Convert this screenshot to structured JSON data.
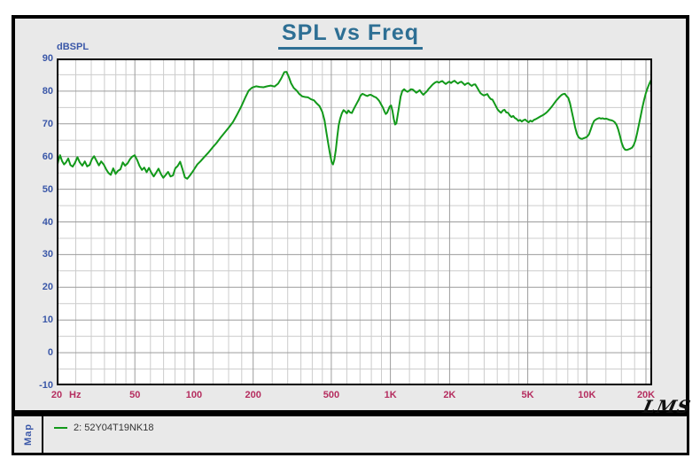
{
  "title": "SPL vs Freq",
  "watermark": "LMS",
  "map_label": "Map",
  "legend": {
    "series_label": "2: 52Y04T19NK18"
  },
  "colors": {
    "title": "#2e6f94",
    "y_axis_text": "#3a57a8",
    "x_axis_text": "#b52d5f",
    "trace": "#12991a",
    "panel_background": "#e9e9e9",
    "plot_background": "#ffffff",
    "grid_major": "#9c9c9c",
    "grid_minor": "#cccccc",
    "frame": "#000000"
  },
  "chart_data": {
    "type": "line",
    "title": "SPL vs Freq",
    "ylabel": "dBSPL",
    "xlabel": "",
    "x_unit": "Hz",
    "x_scale": "log",
    "x_range": [
      20,
      21500
    ],
    "y_range": [
      -10,
      90
    ],
    "y_major_step": 10,
    "y_minor_step": 5,
    "grid": true,
    "legend_position": "bottom",
    "x_major_ticks": [
      {
        "f": 20,
        "label": "20"
      },
      {
        "f": 50,
        "label": "50"
      },
      {
        "f": 100,
        "label": "100"
      },
      {
        "f": 200,
        "label": "200"
      },
      {
        "f": 500,
        "label": "500"
      },
      {
        "f": 1000,
        "label": "1K"
      },
      {
        "f": 2000,
        "label": "2K"
      },
      {
        "f": 5000,
        "label": "5K"
      },
      {
        "f": 10000,
        "label": "10K"
      },
      {
        "f": 20000,
        "label": "20K"
      }
    ],
    "x_minor_ticks": [
      25,
      30,
      35,
      40,
      45,
      60,
      70,
      80,
      90,
      125,
      150,
      175,
      250,
      300,
      350,
      400,
      450,
      600,
      700,
      800,
      900,
      1250,
      1500,
      1750,
      2500,
      3000,
      3500,
      4000,
      4500,
      6000,
      7000,
      8000,
      9000,
      12500,
      15000,
      17500
    ],
    "series": [
      {
        "name": "2: 52Y04T19NK18",
        "color": "#12991a",
        "points": [
          [
            20,
            56.3
          ],
          [
            20.4,
            58.8
          ],
          [
            20.8,
            60.4
          ],
          [
            21.3,
            58.6
          ],
          [
            21.8,
            57.6
          ],
          [
            22.3,
            58.2
          ],
          [
            22.9,
            59.4
          ],
          [
            23.5,
            57.4
          ],
          [
            24.1,
            56.9
          ],
          [
            24.8,
            58.1
          ],
          [
            25.5,
            59.8
          ],
          [
            26.2,
            58.2
          ],
          [
            27,
            57.2
          ],
          [
            27.8,
            58.5
          ],
          [
            28.6,
            57
          ],
          [
            29.4,
            57.4
          ],
          [
            30.2,
            59.2
          ],
          [
            31,
            60.1
          ],
          [
            31.9,
            58.7
          ],
          [
            32.8,
            57.3
          ],
          [
            33.7,
            58.5
          ],
          [
            34.7,
            57.6
          ],
          [
            35.7,
            56.1
          ],
          [
            36.7,
            55
          ],
          [
            37.7,
            54.4
          ],
          [
            38.8,
            56.4
          ],
          [
            39.9,
            54.7
          ],
          [
            41,
            55.6
          ],
          [
            42.2,
            56.1
          ],
          [
            43.4,
            58.2
          ],
          [
            44.6,
            57.2
          ],
          [
            45.9,
            57.9
          ],
          [
            47.2,
            59.2
          ],
          [
            48.5,
            60
          ],
          [
            49.9,
            60.4
          ],
          [
            51.3,
            59
          ],
          [
            52.8,
            57.1
          ],
          [
            54.3,
            55.9
          ],
          [
            55.8,
            56.6
          ],
          [
            57.4,
            55.2
          ],
          [
            59,
            56.5
          ],
          [
            60.7,
            55
          ],
          [
            62.4,
            53.9
          ],
          [
            64.2,
            55.1
          ],
          [
            66,
            56.3
          ],
          [
            67.9,
            54.6
          ],
          [
            69.8,
            53.5
          ],
          [
            71.8,
            54.4
          ],
          [
            73.8,
            55.3
          ],
          [
            75.9,
            53.9
          ],
          [
            78.1,
            54.2
          ],
          [
            80.3,
            56.4
          ],
          [
            82.6,
            57.1
          ],
          [
            85,
            58.4
          ],
          [
            87.4,
            56.1
          ],
          [
            89.9,
            53.6
          ],
          [
            92.4,
            53.2
          ],
          [
            95,
            54.1
          ],
          [
            97.7,
            55.1
          ],
          [
            100,
            56
          ],
          [
            104,
            57.6
          ],
          [
            108,
            58.6
          ],
          [
            113,
            59.9
          ],
          [
            118,
            61.1
          ],
          [
            124,
            62.7
          ],
          [
            130,
            64.1
          ],
          [
            137,
            65.9
          ],
          [
            144,
            67.5
          ],
          [
            151,
            69
          ],
          [
            158,
            70.6
          ],
          [
            166,
            72.9
          ],
          [
            174,
            75.3
          ],
          [
            182,
            77.9
          ],
          [
            190,
            80.2
          ],
          [
            198,
            81.1
          ],
          [
            207,
            81.5
          ],
          [
            216,
            81.3
          ],
          [
            226,
            81.2
          ],
          [
            236,
            81.5
          ],
          [
            246,
            81.7
          ],
          [
            257,
            81.4
          ],
          [
            268,
            82.3
          ],
          [
            278,
            83.9
          ],
          [
            288,
            85.8
          ],
          [
            296,
            85.9
          ],
          [
            304,
            84.3
          ],
          [
            312,
            82.4
          ],
          [
            322,
            81
          ],
          [
            333,
            80.2
          ],
          [
            344,
            79.1
          ],
          [
            356,
            78.4
          ],
          [
            368,
            78.2
          ],
          [
            381,
            78.1
          ],
          [
            394,
            77.5
          ],
          [
            408,
            77.2
          ],
          [
            422,
            76.2
          ],
          [
            436,
            75.4
          ],
          [
            450,
            73.6
          ],
          [
            462,
            71
          ],
          [
            472,
            67.5
          ],
          [
            482,
            64
          ],
          [
            492,
            61
          ],
          [
            502,
            58.3
          ],
          [
            510,
            57.6
          ],
          [
            518,
            59
          ],
          [
            527,
            62
          ],
          [
            536,
            66
          ],
          [
            545,
            69.5
          ],
          [
            555,
            71.6
          ],
          [
            566,
            73.2
          ],
          [
            577,
            74.2
          ],
          [
            588,
            73.8
          ],
          [
            600,
            73.2
          ],
          [
            611,
            74.1
          ],
          [
            623,
            73.5
          ],
          [
            636,
            73.3
          ],
          [
            649,
            74.4
          ],
          [
            662,
            75.4
          ],
          [
            676,
            76.4
          ],
          [
            690,
            77.4
          ],
          [
            704,
            78.6
          ],
          [
            719,
            79.2
          ],
          [
            733,
            79
          ],
          [
            748,
            78.7
          ],
          [
            763,
            78.5
          ],
          [
            779,
            78.8
          ],
          [
            795,
            78.9
          ],
          [
            811,
            78.6
          ],
          [
            827,
            78.3
          ],
          [
            844,
            78.1
          ],
          [
            861,
            77.6
          ],
          [
            879,
            76.9
          ],
          [
            897,
            75.9
          ],
          [
            915,
            75
          ],
          [
            933,
            73.8
          ],
          [
            947,
            73
          ],
          [
            962,
            73.4
          ],
          [
            977,
            74.4
          ],
          [
            992,
            75.3
          ],
          [
            1008,
            75.6
          ],
          [
            1024,
            74
          ],
          [
            1040,
            71.5
          ],
          [
            1056,
            69.8
          ],
          [
            1072,
            70.1
          ],
          [
            1088,
            72.5
          ],
          [
            1104,
            75
          ],
          [
            1127,
            78.3
          ],
          [
            1150,
            80.1
          ],
          [
            1174,
            80.6
          ],
          [
            1198,
            80.1
          ],
          [
            1223,
            79.8
          ],
          [
            1248,
            80.2
          ],
          [
            1274,
            80.6
          ],
          [
            1300,
            80.5
          ],
          [
            1327,
            80
          ],
          [
            1354,
            79.5
          ],
          [
            1382,
            79.9
          ],
          [
            1410,
            80.3
          ],
          [
            1439,
            79.5
          ],
          [
            1469,
            78.9
          ],
          [
            1499,
            79.4
          ],
          [
            1530,
            79.9
          ],
          [
            1561,
            80.6
          ],
          [
            1594,
            81.2
          ],
          [
            1626,
            81.8
          ],
          [
            1660,
            82.3
          ],
          [
            1694,
            82.7
          ],
          [
            1729,
            82.9
          ],
          [
            1764,
            82.6
          ],
          [
            1800,
            82.9
          ],
          [
            1837,
            83.1
          ],
          [
            1875,
            82.6
          ],
          [
            1914,
            82.2
          ],
          [
            1953,
            82.6
          ],
          [
            1993,
            82.9
          ],
          [
            2034,
            82.5
          ],
          [
            2076,
            82.9
          ],
          [
            2118,
            83.2
          ],
          [
            2162,
            82.7
          ],
          [
            2206,
            82.3
          ],
          [
            2251,
            82.7
          ],
          [
            2297,
            82.9
          ],
          [
            2344,
            82.4
          ],
          [
            2392,
            81.9
          ],
          [
            2441,
            82.3
          ],
          [
            2491,
            82.5
          ],
          [
            2542,
            82
          ],
          [
            2594,
            81.6
          ],
          [
            2647,
            82
          ],
          [
            2701,
            82.1
          ],
          [
            2757,
            81.2
          ],
          [
            2813,
            80.3
          ],
          [
            2871,
            79.4
          ],
          [
            2930,
            79
          ],
          [
            2990,
            78.7
          ],
          [
            3051,
            78.9
          ],
          [
            3113,
            79.1
          ],
          [
            3177,
            78.2
          ],
          [
            3242,
            77.6
          ],
          [
            3308,
            77.4
          ],
          [
            3376,
            76.4
          ],
          [
            3445,
            75.4
          ],
          [
            3515,
            74.4
          ],
          [
            3587,
            73.8
          ],
          [
            3660,
            73.4
          ],
          [
            3735,
            74.1
          ],
          [
            3811,
            74.3
          ],
          [
            3889,
            73.5
          ],
          [
            3968,
            73.4
          ],
          [
            4049,
            72.6
          ],
          [
            4132,
            72.1
          ],
          [
            4216,
            72.4
          ],
          [
            4302,
            71.8
          ],
          [
            4390,
            71.5
          ],
          [
            4480,
            70.9
          ],
          [
            4571,
            71.2
          ],
          [
            4664,
            70.7
          ],
          [
            4759,
            71.1
          ],
          [
            4856,
            71.3
          ],
          [
            4955,
            70.8
          ],
          [
            5056,
            70.5
          ],
          [
            5159,
            71
          ],
          [
            5264,
            70.7
          ],
          [
            5371,
            71.2
          ],
          [
            5481,
            71.4
          ],
          [
            5593,
            71.7
          ],
          [
            5707,
            72
          ],
          [
            5823,
            72.3
          ],
          [
            5942,
            72.6
          ],
          [
            6063,
            72.9
          ],
          [
            6187,
            73.3
          ],
          [
            6313,
            73.8
          ],
          [
            6442,
            74.4
          ],
          [
            6573,
            75
          ],
          [
            6707,
            75.7
          ],
          [
            6844,
            76.4
          ],
          [
            6984,
            77.1
          ],
          [
            7127,
            77.7
          ],
          [
            7272,
            78.3
          ],
          [
            7421,
            78.8
          ],
          [
            7572,
            79.1
          ],
          [
            7727,
            79.2
          ],
          [
            7884,
            78.5
          ],
          [
            8045,
            77.9
          ],
          [
            8209,
            76.3
          ],
          [
            8376,
            73.9
          ],
          [
            8547,
            71.4
          ],
          [
            8721,
            68.9
          ],
          [
            8899,
            66.9
          ],
          [
            9080,
            65.9
          ],
          [
            9265,
            65.5
          ],
          [
            9454,
            65.4
          ],
          [
            9647,
            65.6
          ],
          [
            9843,
            65.8
          ],
          [
            10044,
            66.1
          ],
          [
            10249,
            66.8
          ],
          [
            10458,
            68.2
          ],
          [
            10671,
            69.8
          ],
          [
            10888,
            70.9
          ],
          [
            11110,
            71.3
          ],
          [
            11337,
            71.6
          ],
          [
            11568,
            71.8
          ],
          [
            11804,
            71.6
          ],
          [
            12045,
            71.7
          ],
          [
            12290,
            71.5
          ],
          [
            12541,
            71.6
          ],
          [
            12797,
            71.4
          ],
          [
            13058,
            71.2
          ],
          [
            13324,
            71.1
          ],
          [
            13596,
            70.9
          ],
          [
            13873,
            70.5
          ],
          [
            14156,
            69.7
          ],
          [
            14445,
            68.3
          ],
          [
            14739,
            66.3
          ],
          [
            15040,
            64.2
          ],
          [
            15347,
            62.8
          ],
          [
            15660,
            62.1
          ],
          [
            15979,
            62
          ],
          [
            16305,
            62.2
          ],
          [
            16638,
            62.4
          ],
          [
            16977,
            62.7
          ],
          [
            17323,
            63.5
          ],
          [
            17677,
            65
          ],
          [
            18037,
            67.2
          ],
          [
            18405,
            69.7
          ],
          [
            18781,
            72.3
          ],
          [
            19164,
            74.9
          ],
          [
            19555,
            77.3
          ],
          [
            19954,
            79.3
          ],
          [
            20361,
            80.9
          ],
          [
            20776,
            82.2
          ],
          [
            21200,
            83.3
          ],
          [
            21500,
            83.9
          ]
        ]
      }
    ]
  }
}
